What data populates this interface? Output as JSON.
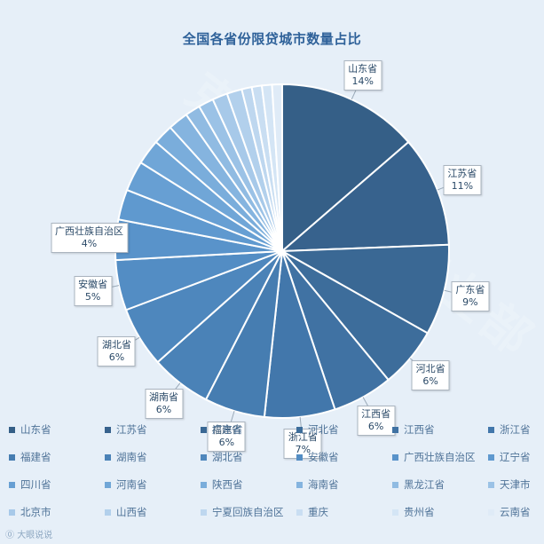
{
  "title": "全国各省份限贷城市数量占比",
  "chart_data": {
    "type": "pie",
    "title": "全国各省份限贷城市数量占比",
    "slices": [
      {
        "label": "山东省",
        "value": 14,
        "display": "14%",
        "color": "#355f87"
      },
      {
        "label": "江苏省",
        "value": 11,
        "display": "11%",
        "color": "#37628d"
      },
      {
        "label": "广东省",
        "value": 9,
        "display": "9%",
        "color": "#3a6894"
      },
      {
        "label": "河北省",
        "value": 6,
        "display": "6%",
        "color": "#3d6d9b"
      },
      {
        "label": "江西省",
        "value": 6,
        "display": "6%",
        "color": "#4072a3"
      },
      {
        "label": "浙江省",
        "value": 7,
        "display": "7%",
        "color": "#4277ab"
      },
      {
        "label": "福建省",
        "value": 6,
        "display": "6%",
        "color": "#467db1"
      },
      {
        "label": "湖南省",
        "value": 6,
        "display": "6%",
        "color": "#4a82b7"
      },
      {
        "label": "湖北省",
        "value": 6,
        "display": "6%",
        "color": "#4e87bd"
      },
      {
        "label": "安徽省",
        "value": 5,
        "display": "5%",
        "color": "#538dc4"
      },
      {
        "label": "广西壮族自治区",
        "value": 4,
        "display": "4%",
        "color": "#5993ca"
      },
      {
        "label": "辽宁省",
        "value": 3,
        "display": "",
        "color": "#5f99cf"
      },
      {
        "label": "四川省",
        "value": 3,
        "display": "",
        "color": "#679fd3"
      },
      {
        "label": "河南省",
        "value": 2.5,
        "display": "",
        "color": "#70a6d7"
      },
      {
        "label": "陕西省",
        "value": 2,
        "display": "",
        "color": "#7aaddb"
      },
      {
        "label": "海南省",
        "value": 2,
        "display": "",
        "color": "#85b4df"
      },
      {
        "label": "黑龙江省",
        "value": 1.5,
        "display": "",
        "color": "#90bbe2"
      },
      {
        "label": "天津市",
        "value": 1.5,
        "display": "",
        "color": "#9bc2e6"
      },
      {
        "label": "北京市",
        "value": 1.5,
        "display": "",
        "color": "#a7c9e9"
      },
      {
        "label": "山西省",
        "value": 1.5,
        "display": "",
        "color": "#b2d0ec"
      },
      {
        "label": "宁夏回族自治区",
        "value": 1,
        "display": "",
        "color": "#bed7ef"
      },
      {
        "label": "重庆",
        "value": 1,
        "display": "",
        "color": "#c9def2"
      },
      {
        "label": "贵州省",
        "value": 1,
        "display": "",
        "color": "#d4e5f5"
      },
      {
        "label": "云南省",
        "value": 1,
        "display": "",
        "color": "#dfebf7"
      }
    ],
    "legend_placement": "bottom"
  },
  "watermark": "大眼说说",
  "bg_watermark": "克而瑞创新事业部"
}
